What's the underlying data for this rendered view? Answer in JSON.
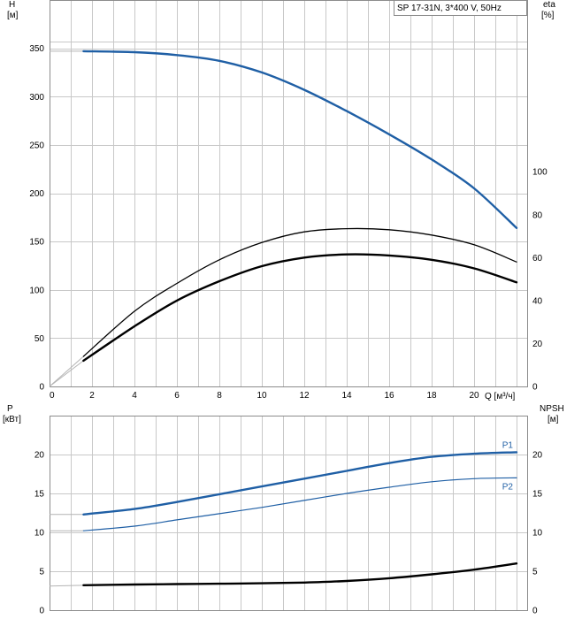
{
  "chart_data": [
    {
      "type": "line",
      "title": "SP 17-31N, 3*400 V, 50Hz",
      "left_axis_label": [
        "H",
        "[м]"
      ],
      "right_axis_label": [
        "eta",
        "[%]"
      ],
      "xlabel": "Q [м³/ч]",
      "xlim": [
        0,
        22.5
      ],
      "ylim_left": [
        0,
        400
      ],
      "ylim_right": [
        0,
        180
      ],
      "x_ticks": [
        "0",
        "2",
        "4",
        "6",
        "8",
        "10",
        "12",
        "14",
        "16",
        "18",
        "20"
      ],
      "y_ticks_left": [
        "0",
        "50",
        "100",
        "150",
        "200",
        "250",
        "300",
        "350"
      ],
      "y_ticks_right": [
        "0",
        "20",
        "40",
        "60",
        "80",
        "100"
      ],
      "grid": true,
      "series": [
        {
          "axis": "left",
          "color": "#1f5fa5",
          "width": 2.4,
          "shutoff": 347,
          "x": [
            1.6,
            4,
            6,
            8,
            10,
            12,
            14,
            16,
            18,
            20,
            22
          ],
          "y": [
            347,
            346,
            343,
            337,
            325,
            307,
            285,
            261,
            235,
            205,
            164
          ]
        },
        {
          "axis": "right",
          "color": "#000000",
          "width": 1.3,
          "origin": true,
          "x": [
            1.6,
            4,
            6,
            8,
            10,
            12,
            14,
            16,
            18,
            20,
            22
          ],
          "y": [
            14,
            35,
            48,
            59,
            67,
            72,
            73.5,
            73,
            70.5,
            66,
            58
          ]
        },
        {
          "axis": "right",
          "color": "#000000",
          "width": 2.4,
          "origin": true,
          "x": [
            1.6,
            4,
            6,
            8,
            10,
            12,
            14,
            16,
            18,
            20,
            22
          ],
          "y": [
            12,
            28,
            40,
            49,
            56,
            60,
            61.5,
            61,
            59,
            55,
            48.5
          ]
        }
      ]
    },
    {
      "type": "line",
      "left_axis_label": [
        "P",
        "[кВт]"
      ],
      "right_axis_label": [
        "NPSH",
        "[м]"
      ],
      "xlim": [
        0,
        22.5
      ],
      "ylim_left": [
        0,
        25
      ],
      "ylim_right": [
        0,
        25
      ],
      "y_ticks_left": [
        "0",
        "5",
        "10",
        "15",
        "20"
      ],
      "y_ticks_right": [
        "0",
        "5",
        "10",
        "15",
        "20"
      ],
      "grid": true,
      "series": [
        {
          "name": "P1",
          "axis": "left",
          "color": "#1f5fa5",
          "width": 2.4,
          "shutoff": 12.3,
          "x": [
            1.6,
            4,
            6,
            8,
            10,
            12,
            14,
            16,
            18,
            20,
            22
          ],
          "y": [
            12.3,
            13.0,
            13.9,
            14.9,
            15.9,
            16.9,
            17.9,
            18.9,
            19.7,
            20.1,
            20.3
          ]
        },
        {
          "name": "P2",
          "axis": "left",
          "color": "#1f5fa5",
          "width": 1.2,
          "shutoff": 10.2,
          "x": [
            1.6,
            4,
            6,
            8,
            10,
            12,
            14,
            16,
            18,
            20,
            22
          ],
          "y": [
            10.2,
            10.8,
            11.6,
            12.4,
            13.2,
            14.1,
            15.0,
            15.8,
            16.5,
            16.9,
            17.0
          ]
        },
        {
          "axis": "right",
          "color": "#000000",
          "width": 2.4,
          "shutoff": 3.1,
          "x": [
            1.6,
            4,
            6,
            8,
            10,
            12,
            14,
            16,
            18,
            20,
            22
          ],
          "y": [
            3.2,
            3.3,
            3.35,
            3.4,
            3.45,
            3.55,
            3.75,
            4.1,
            4.6,
            5.2,
            6.0
          ]
        }
      ]
    }
  ]
}
